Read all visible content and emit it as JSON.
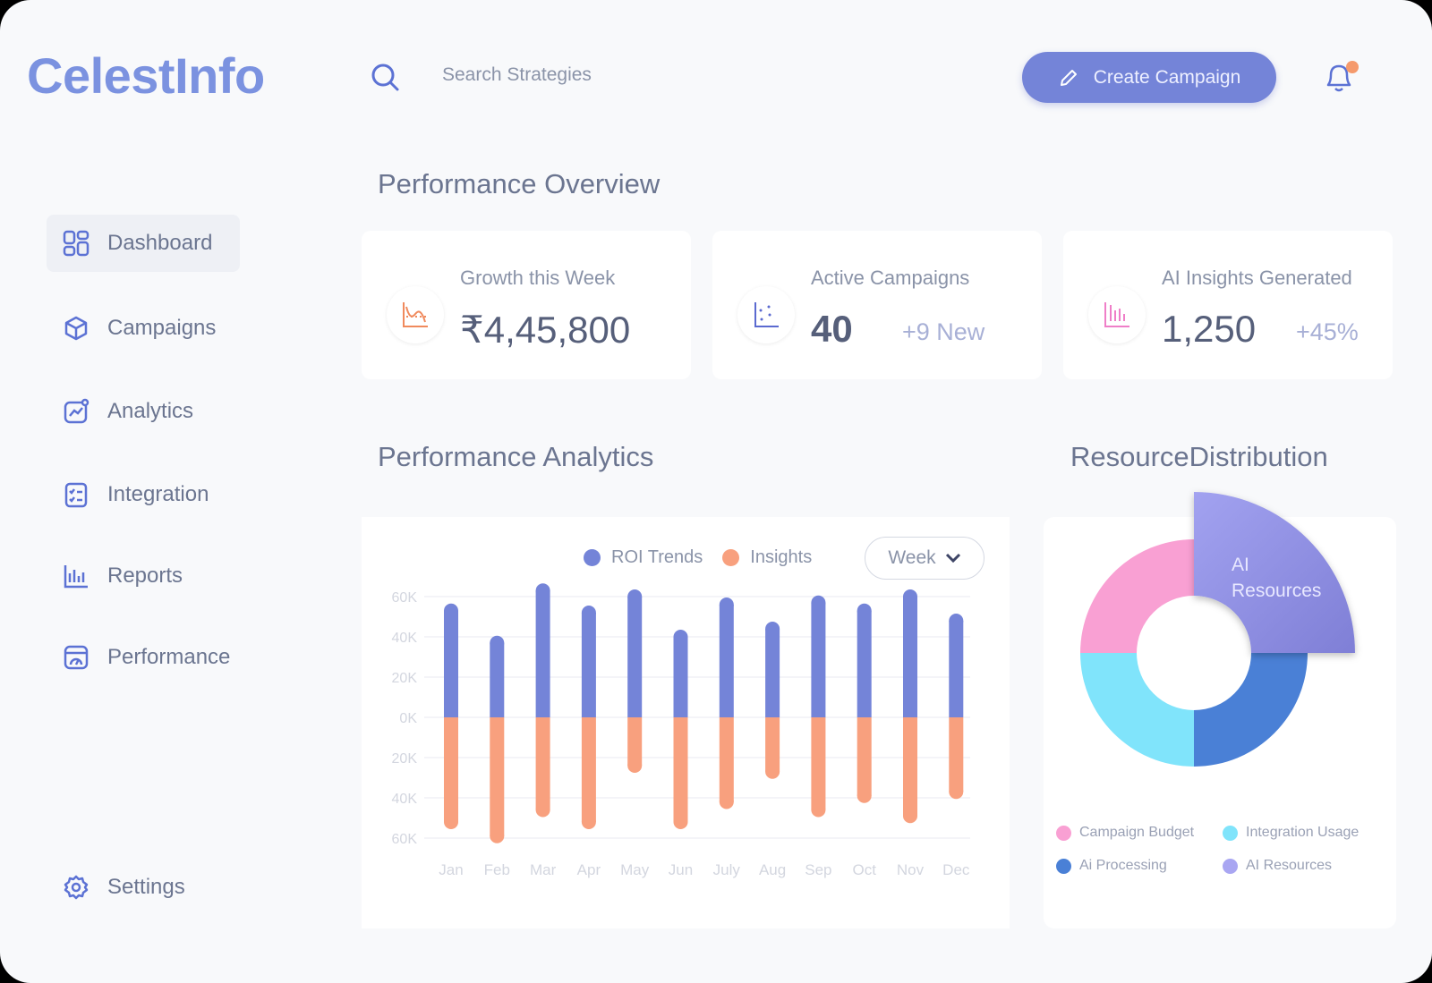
{
  "app": {
    "name": "CelestInfo"
  },
  "search": {
    "placeholder": "Search Strategies"
  },
  "header": {
    "create_label": "Create Campaign",
    "has_notification": true
  },
  "sidebar": {
    "items": [
      {
        "label": "Dashboard",
        "icon": "dashboard-icon",
        "active": true
      },
      {
        "label": "Campaigns",
        "icon": "cube-icon"
      },
      {
        "label": "Analytics",
        "icon": "analytics-icon"
      },
      {
        "label": "Integration",
        "icon": "checklist-icon"
      },
      {
        "label": "Reports",
        "icon": "bar-chart-icon"
      },
      {
        "label": "Performance",
        "icon": "gauge-icon"
      }
    ],
    "settings": {
      "label": "Settings",
      "icon": "gear-icon"
    }
  },
  "overview": {
    "title": "Performance Overview",
    "cards": [
      {
        "label": "Growth this Week",
        "value": "₹4,45,800",
        "sub": "",
        "icon": "line-chart-icon",
        "color": "#f08a5d"
      },
      {
        "label": "Active Campaigns",
        "value": "40",
        "sub": "+9 New",
        "icon": "scatter-icon",
        "color": "#5b6ad0"
      },
      {
        "label": "AI Insights Generated",
        "value": "1,250",
        "sub": "+45%",
        "icon": "bar-icon",
        "color": "#ef7fc8"
      }
    ]
  },
  "analytics": {
    "title": "Performance Analytics",
    "period": "Week"
  },
  "resources": {
    "title": "ResourceDistribution"
  },
  "chart_data": [
    {
      "type": "bar",
      "categories": [
        "Jan",
        "Feb",
        "Mar",
        "Apr",
        "May",
        "Jun",
        "July",
        "Aug",
        "Sep",
        "Oct",
        "Nov",
        "Dec"
      ],
      "series": [
        {
          "name": "ROI Trends",
          "color": "#7484d8",
          "values": [
            53,
            37,
            63,
            52,
            60,
            40,
            56,
            44,
            57,
            53,
            60,
            48
          ]
        },
        {
          "name": "Insights",
          "color": "#f8a07e",
          "values": [
            -52,
            -59,
            -46,
            -52,
            -24,
            -52,
            -42,
            -27,
            -46,
            -39,
            -49,
            -37
          ]
        }
      ],
      "yticks": [
        "60K",
        "40K",
        "20K",
        "0K",
        "20K",
        "40K",
        "60K"
      ],
      "ylim": [
        -60,
        60
      ],
      "legend": "top",
      "grid": true
    },
    {
      "type": "pie",
      "donut": true,
      "slices": [
        {
          "name": "Campaign Budget",
          "value": 25,
          "color": "#f9a0d3"
        },
        {
          "name": "AI Resources",
          "value": 25,
          "color": "#8f8fe0",
          "highlighted": true,
          "label": "AI Resources",
          "label_lines": [
            "AI",
            "Resources"
          ]
        },
        {
          "name": "Ai Processing",
          "value": 25,
          "color": "#4a80d6"
        },
        {
          "name": "Integration Usage",
          "value": 25,
          "color": "#80e4fb"
        }
      ],
      "legend": [
        {
          "name": "Campaign Budget",
          "color": "#f9a0d3"
        },
        {
          "name": "Integration Usage",
          "color": "#80e4fb"
        },
        {
          "name": "Ai Processing",
          "color": "#4a80d6"
        },
        {
          "name": "AI Resources",
          "color": "#a9a6f2"
        }
      ],
      "legend_position": "bottom"
    }
  ]
}
